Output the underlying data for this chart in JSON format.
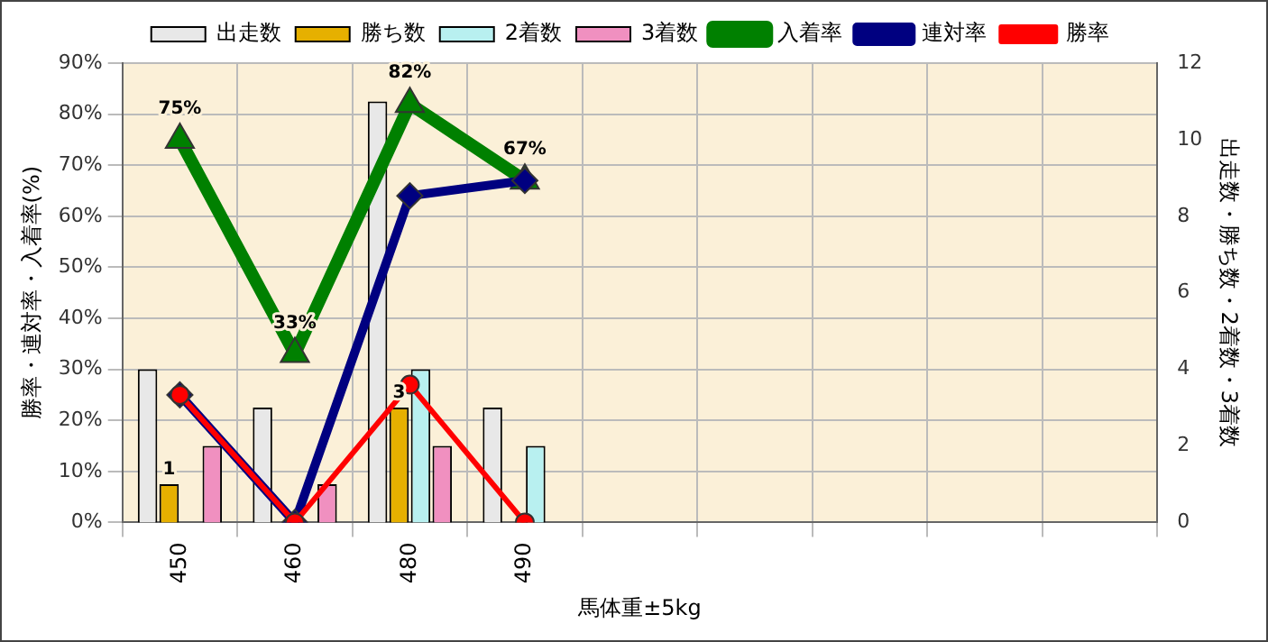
{
  "chart_data": {
    "type": "bar",
    "categories": [
      "450",
      "460",
      "480",
      "490",
      null,
      null,
      null,
      null,
      null
    ],
    "xlabel": "馬体重±5kg",
    "ylabel": "勝率・連対率・入着率(%)",
    "y2label": "出走数・勝ち数・2着数・3着数",
    "series": [
      {
        "name": "出走数",
        "axis": "y2",
        "color": "#e8e8e8",
        "values": [
          4,
          3,
          11,
          3,
          null,
          null,
          null,
          null,
          null
        ]
      },
      {
        "name": "勝ち数",
        "axis": "y2",
        "color": "#e6b000",
        "values": [
          1,
          0,
          3,
          0,
          null,
          null,
          null,
          null,
          null
        ],
        "value_labels": [
          "1",
          null,
          "3",
          null,
          null,
          null,
          null,
          null,
          null
        ]
      },
      {
        "name": "2着数",
        "axis": "y2",
        "color": "#b8f0f0",
        "values": [
          0,
          0,
          4,
          2,
          null,
          null,
          null,
          null,
          null
        ]
      },
      {
        "name": "3着数",
        "axis": "y2",
        "color": "#f090c0",
        "values": [
          2,
          1,
          2,
          0,
          null,
          null,
          null,
          null,
          null
        ]
      },
      {
        "name": "入着率",
        "type": "line",
        "color": "#008000",
        "marker": "triangle",
        "values": [
          75,
          33,
          82,
          67,
          null,
          null,
          null,
          null,
          null
        ],
        "value_labels": [
          "75%",
          "33%",
          "82%",
          "67%",
          null,
          null,
          null,
          null,
          null
        ]
      },
      {
        "name": "連対率",
        "type": "line",
        "color": "#000080",
        "marker": "diamond",
        "values": [
          25,
          0,
          64,
          67,
          null,
          null,
          null,
          null,
          null
        ]
      },
      {
        "name": "勝率",
        "type": "line",
        "color": "#ff0000",
        "marker": "circle",
        "values": [
          25,
          0,
          27,
          0,
          null,
          null,
          null,
          null,
          null
        ]
      }
    ],
    "ylim": [
      0,
      90
    ],
    "yticks": [
      {
        "value": 0,
        "label": "0%"
      },
      {
        "value": 10,
        "label": "10%"
      },
      {
        "value": 20,
        "label": "20%"
      },
      {
        "value": 30,
        "label": "30%"
      },
      {
        "value": 40,
        "label": "40%"
      },
      {
        "value": 50,
        "label": "50%"
      },
      {
        "value": 60,
        "label": "60%"
      },
      {
        "value": 70,
        "label": "70%"
      },
      {
        "value": 80,
        "label": "80%"
      },
      {
        "value": 90,
        "label": "90%"
      }
    ],
    "y2lim": [
      0,
      12
    ],
    "y2ticks": [
      0,
      2,
      4,
      6,
      8,
      10,
      12
    ],
    "grid": true,
    "legend": "top"
  }
}
